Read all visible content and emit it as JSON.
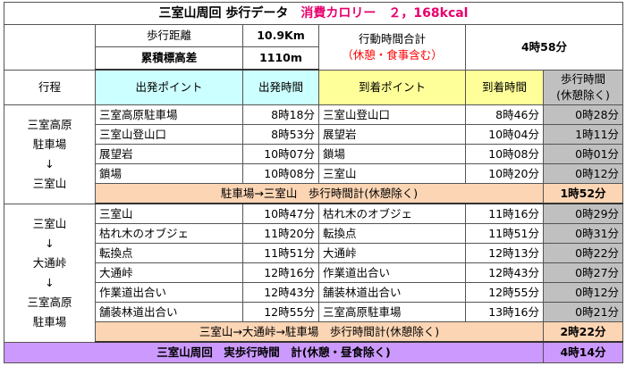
{
  "title": {
    "main": "三室山周回 歩行データ",
    "calorie": "消費カロリー　２，168kcal"
  },
  "summary": {
    "distance_label": "歩行距離",
    "distance_value": "10.9Km",
    "elevation_label": "累積標高差",
    "elevation_value": "1110m",
    "total_label": "行動時間合計",
    "total_note": "（休憩・食事含む）",
    "total_value": "4時58分"
  },
  "headers": {
    "route": "行程",
    "depart_point": "出発ポイント",
    "depart_time": "出発時間",
    "arrive_point": "到着ポイント",
    "arrive_time": "到着時間",
    "walk_time_line1": "歩行時間",
    "walk_time_line2": "(休憩除く)"
  },
  "section1": {
    "route": [
      "三室高原",
      "駐車場",
      "↓",
      "三室山"
    ],
    "rows": [
      {
        "from": "三室高原駐車場",
        "depart": "8時18分",
        "to": "三室山登山口",
        "arrive": "8時46分",
        "walk": "0時28分"
      },
      {
        "from": "三室山登山口",
        "depart": "8時53分",
        "to": "展望岩",
        "arrive": "10時04分",
        "walk": "1時11分"
      },
      {
        "from": "展望岩",
        "depart": "10時07分",
        "to": "鎖場",
        "arrive": "10時08分",
        "walk": "0時01分"
      },
      {
        "from": "鎖場",
        "depart": "10時08分",
        "to": "三室山",
        "arrive": "10時20分",
        "walk": "0時12分"
      }
    ],
    "subtotal_label": "駐車場→三室山　歩行時間計(休憩除く)",
    "subtotal_value": "1時52分"
  },
  "section2": {
    "route": [
      "三室山",
      "↓",
      "大通峠",
      "↓",
      "三室高原",
      "駐車場"
    ],
    "rows": [
      {
        "from": "三室山",
        "depart": "10時47分",
        "to": "枯れ木のオブジェ",
        "arrive": "11時16分",
        "walk": "0時29分"
      },
      {
        "from": "枯れ木のオブジェ",
        "depart": "11時20分",
        "to": "転換点",
        "arrive": "11時51分",
        "walk": "0時31分"
      },
      {
        "from": "転換点",
        "depart": "11時51分",
        "to": "大通峠",
        "arrive": "12時13分",
        "walk": "0時22分"
      },
      {
        "from": "大通峠",
        "depart": "12時16分",
        "to": "作業道出合い",
        "arrive": "12時43分",
        "walk": "0時27分"
      },
      {
        "from": "作業道出合い",
        "depart": "12時43分",
        "to": "舗装林道出合い",
        "arrive": "12時55分",
        "walk": "0時12分"
      },
      {
        "from": "舗装林道出合い",
        "depart": "12時55分",
        "to": "三室高原駐車場",
        "arrive": "13時16分",
        "walk": "0時21分"
      }
    ],
    "subtotal_label": "三室山→大通峠→駐車場　歩行時間計(休憩除く)",
    "subtotal_value": "2時22分"
  },
  "grand_total": {
    "label": "三室山周回　実歩行時間　計(休憩・昼食除く)",
    "value": "4時14分"
  },
  "colors": {
    "depart_header": "#ccffff",
    "arrive_header": "#ffff99",
    "walk_column": "#c0c0c0",
    "subtotal": "#fcd5b4",
    "grand_total": "#cc99ff",
    "accent_red": "#ff0000",
    "calorie_pink": "#e8006e"
  }
}
